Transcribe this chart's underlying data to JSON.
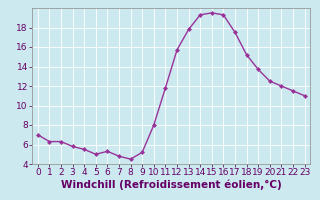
{
  "x": [
    0,
    1,
    2,
    3,
    4,
    5,
    6,
    7,
    8,
    9,
    10,
    11,
    12,
    13,
    14,
    15,
    16,
    17,
    18,
    19,
    20,
    21,
    22,
    23
  ],
  "y": [
    7.0,
    6.3,
    6.3,
    5.8,
    5.5,
    5.0,
    5.3,
    4.8,
    4.5,
    5.2,
    8.0,
    11.8,
    15.7,
    17.8,
    19.3,
    19.5,
    19.3,
    17.5,
    15.2,
    13.7,
    12.5,
    12.0,
    11.5,
    11.0
  ],
  "line_color": "#993399",
  "marker": "D",
  "marker_size": 2.0,
  "background_color": "#cce9f0",
  "grid_color": "#b0d8e8",
  "xlabel": "Windchill (Refroidissement éolien,°C)",
  "xlabel_fontsize": 7.5,
  "tick_fontsize": 6.5,
  "ylim": [
    4,
    20
  ],
  "xlim": [
    -0.5,
    23.5
  ],
  "yticks": [
    4,
    6,
    8,
    10,
    12,
    14,
    16,
    18
  ],
  "xticks": [
    0,
    1,
    2,
    3,
    4,
    5,
    6,
    7,
    8,
    9,
    10,
    11,
    12,
    13,
    14,
    15,
    16,
    17,
    18,
    19,
    20,
    21,
    22,
    23
  ]
}
